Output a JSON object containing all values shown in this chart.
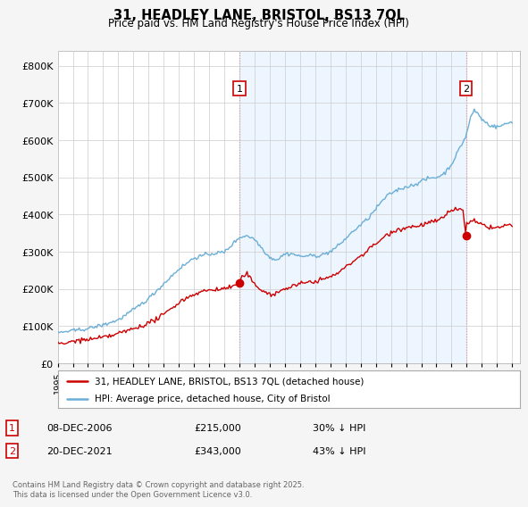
{
  "title": "31, HEADLEY LANE, BRISTOL, BS13 7QL",
  "subtitle": "Price paid vs. HM Land Registry's House Price Index (HPI)",
  "hpi_color": "#6baed6",
  "hpi_fill_color": "#ddeeff",
  "price_color": "#cc0000",
  "bg_color": "#f5f5f5",
  "plot_bg_color": "#ffffff",
  "grid_color": "#cccccc",
  "annotation1_date": "08-DEC-2006",
  "annotation1_price": "£215,000",
  "annotation1_pct": "30% ↓ HPI",
  "annotation2_date": "20-DEC-2021",
  "annotation2_price": "£343,000",
  "annotation2_pct": "43% ↓ HPI",
  "legend_line1": "31, HEADLEY LANE, BRISTOL, BS13 7QL (detached house)",
  "legend_line2": "HPI: Average price, detached house, City of Bristol",
  "footer": "Contains HM Land Registry data © Crown copyright and database right 2025.\nThis data is licensed under the Open Government Licence v3.0.",
  "ylim": [
    0,
    840000
  ],
  "yticks": [
    0,
    100000,
    200000,
    300000,
    400000,
    500000,
    600000,
    700000,
    800000
  ],
  "xmin": 1995,
  "xmax": 2025.5,
  "ann1_x": 2007.0,
  "ann1_y": 215000,
  "ann2_x": 2021.95,
  "ann2_y": 343000,
  "shade_alpha": 0.15
}
